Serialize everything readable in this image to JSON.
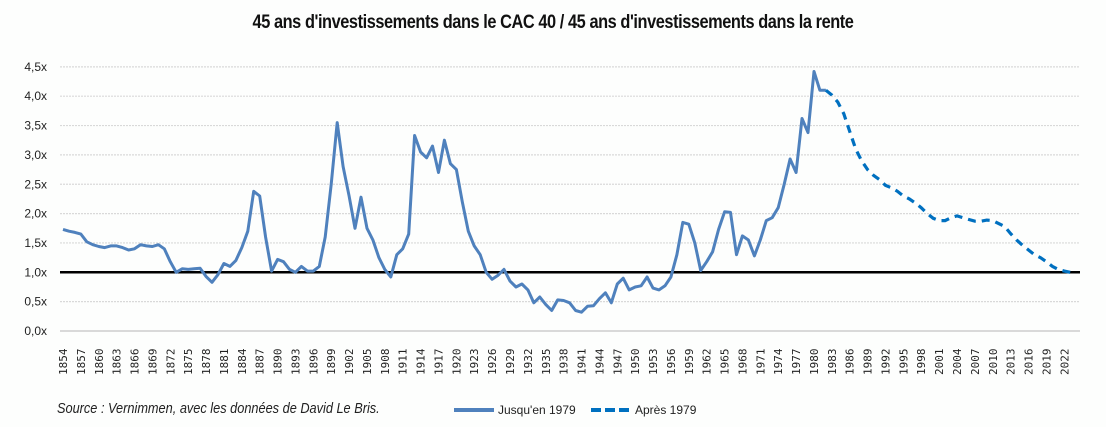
{
  "chart_data": {
    "type": "line",
    "title": "45 ans d'investissements dans le CAC 40 / 45 ans d'investissements dans la rente",
    "xlabel": "",
    "ylabel": "",
    "ylim": [
      0,
      4.5
    ],
    "xlim": [
      1854,
      2023
    ],
    "y_ticks": [
      "0,0x",
      "0,5x",
      "1,0x",
      "1,5x",
      "2,0x",
      "2,5x",
      "3,0x",
      "3,5x",
      "4,0x",
      "4,5x"
    ],
    "y_tick_values": [
      0,
      0.5,
      1,
      1.5,
      2,
      2.5,
      3,
      3.5,
      4,
      4.5
    ],
    "x_ticks": [
      "1854",
      "1857",
      "1860",
      "1863",
      "1866",
      "1869",
      "1872",
      "1875",
      "1878",
      "1881",
      "1884",
      "1887",
      "1890",
      "1893",
      "1896",
      "1899",
      "1902",
      "1905",
      "1908",
      "1911",
      "1914",
      "1917",
      "1920",
      "1923",
      "1926",
      "1929",
      "1932",
      "1935",
      "1938",
      "1941",
      "1944",
      "1947",
      "1950",
      "1953",
      "1956",
      "1959",
      "1962",
      "1965",
      "1968",
      "1971",
      "1974",
      "1977",
      "1980",
      "1983",
      "1986",
      "1989",
      "1992",
      "1995",
      "1998",
      "2001",
      "2004",
      "2007",
      "2010",
      "2013",
      "2016",
      "2019",
      "2022"
    ],
    "reference_line": 1.0,
    "grid": true,
    "legend_position": "bottom",
    "colors": {
      "solid": "#4f81bd",
      "dashed": "#0070c0",
      "reference": "#000000",
      "grid": "#d9d9d9"
    },
    "series": [
      {
        "name": "Jusqu'en 1979",
        "style": "solid",
        "start_year": 1854,
        "values": [
          1.73,
          1.7,
          1.68,
          1.65,
          1.52,
          1.47,
          1.44,
          1.42,
          1.45,
          1.45,
          1.42,
          1.38,
          1.4,
          1.47,
          1.45,
          1.44,
          1.47,
          1.4,
          1.18,
          1.0,
          1.06,
          1.05,
          1.06,
          1.07,
          0.93,
          0.83,
          0.96,
          1.15,
          1.1,
          1.2,
          1.42,
          1.7,
          2.38,
          2.3,
          1.6,
          1.02,
          1.22,
          1.18,
          1.05,
          1.0,
          1.1,
          1.02,
          1.02,
          1.1,
          1.6,
          2.5,
          3.55,
          2.8,
          2.3,
          1.75,
          2.28,
          1.75,
          1.55,
          1.25,
          1.05,
          0.92,
          1.3,
          1.4,
          1.65,
          3.33,
          3.05,
          2.95,
          3.15,
          2.7,
          3.25,
          2.85,
          2.75,
          2.2,
          1.7,
          1.45,
          1.3,
          1.0,
          0.88,
          0.95,
          1.05,
          0.85,
          0.75,
          0.8,
          0.7,
          0.48,
          0.58,
          0.45,
          0.35,
          0.53,
          0.52,
          0.48,
          0.35,
          0.32,
          0.42,
          0.43,
          0.55,
          0.65,
          0.48,
          0.8,
          0.9,
          0.7,
          0.75,
          0.77,
          0.92,
          0.73,
          0.7,
          0.77,
          0.92,
          1.3,
          1.85,
          1.82,
          1.5,
          1.03,
          1.18,
          1.35,
          1.73,
          2.03,
          2.02,
          1.3,
          1.62,
          1.55,
          1.28,
          1.55,
          1.88,
          1.93,
          2.1,
          2.5,
          2.93,
          2.7,
          3.62,
          3.38,
          4.42,
          4.1,
          4.1
        ]
      },
      {
        "name": "Après 1979",
        "style": "dashed",
        "start_year": 1982,
        "values": [
          4.1,
          4.02,
          3.9,
          3.7,
          3.4,
          3.1,
          2.9,
          2.75,
          2.65,
          2.58,
          2.48,
          2.44,
          2.38,
          2.3,
          2.25,
          2.18,
          2.1,
          2.0,
          1.92,
          1.88,
          1.88,
          1.93,
          1.96,
          1.93,
          1.9,
          1.87,
          1.87,
          1.89,
          1.88,
          1.83,
          1.78,
          1.66,
          1.55,
          1.46,
          1.38,
          1.3,
          1.25,
          1.18,
          1.1,
          1.05,
          1.02,
          1.0
        ]
      }
    ]
  },
  "footer": {
    "source": "Source : Vernimmen, avec les données de David Le Bris.",
    "legend_solid": "Jusqu'en 1979",
    "legend_dashed": "Après 1979"
  }
}
